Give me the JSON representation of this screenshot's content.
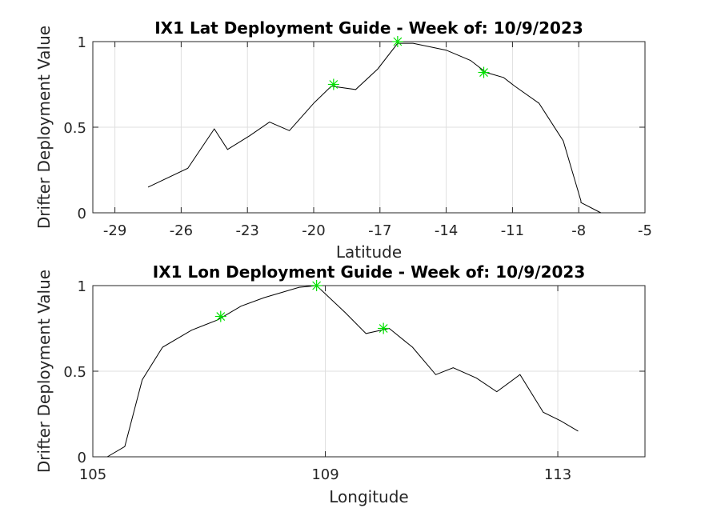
{
  "chart_data": [
    {
      "type": "line",
      "title": "IX1 Lat Deployment Guide - Week of: 10/9/2023",
      "xlabel": "Latitude",
      "ylabel": "Drifter Deployment Value",
      "xlim": [
        -30,
        -5
      ],
      "ylim": [
        0,
        1
      ],
      "xticks": [
        -29,
        -26,
        -23,
        -20,
        -17,
        -14,
        -11,
        -8,
        -5
      ],
      "yticks": [
        0,
        0.5,
        1
      ],
      "ytick_labels": [
        "0",
        "0.5",
        "1"
      ],
      "grid": true,
      "line_color": "#000000",
      "marker_color": "#00e000",
      "series": [
        {
          "x": [
            -27.5,
            -25.7,
            -24.5,
            -23.9,
            -22.9,
            -22.0,
            -21.1,
            -20.0,
            -19.2,
            -18.1,
            -17.1,
            -16.2,
            -15.5,
            -14.0,
            -12.9,
            -12.2,
            -11.4,
            -10.9,
            -9.8,
            -8.9,
            -8.7,
            -7.9,
            -7.9,
            -7.0
          ],
          "y": [
            0.15,
            0.26,
            0.49,
            0.37,
            0.45,
            0.53,
            0.48,
            0.64,
            0.74,
            0.72,
            0.84,
            0.99,
            0.99,
            0.95,
            0.89,
            0.82,
            0.79,
            0.74,
            0.64,
            0.46,
            0.42,
            0.07,
            0.06,
            0.0
          ]
        }
      ],
      "markers": {
        "x": [
          -19.1,
          -16.2,
          -12.3
        ],
        "y": [
          0.75,
          1.0,
          0.82
        ]
      }
    },
    {
      "type": "line",
      "title": "IX1 Lon Deployment Guide - Week of: 10/9/2023",
      "xlabel": "Longitude",
      "ylabel": "Drifter Deployment Value",
      "xlim": [
        105,
        114.5
      ],
      "ylim": [
        0,
        1
      ],
      "xticks": [
        105,
        109,
        113
      ],
      "yticks": [
        0,
        0.5,
        1
      ],
      "ytick_labels": [
        "0",
        "0.5",
        "1"
      ],
      "grid": true,
      "line_color": "#000000",
      "marker_color": "#00e000",
      "series": [
        {
          "x": [
            105.25,
            105.55,
            105.85,
            106.2,
            106.7,
            107.15,
            107.55,
            107.95,
            108.55,
            108.85,
            109.35,
            109.7,
            110.1,
            110.5,
            110.9,
            111.2,
            111.6,
            111.95,
            112.35,
            112.75,
            113.05,
            113.35
          ],
          "y": [
            0.0,
            0.06,
            0.45,
            0.64,
            0.74,
            0.8,
            0.88,
            0.93,
            0.99,
            1.0,
            0.84,
            0.72,
            0.75,
            0.64,
            0.48,
            0.52,
            0.46,
            0.38,
            0.48,
            0.26,
            0.21,
            0.15
          ]
        }
      ],
      "markers": {
        "x": [
          107.2,
          108.85,
          110.0
        ],
        "y": [
          0.82,
          1.0,
          0.75
        ]
      }
    }
  ]
}
